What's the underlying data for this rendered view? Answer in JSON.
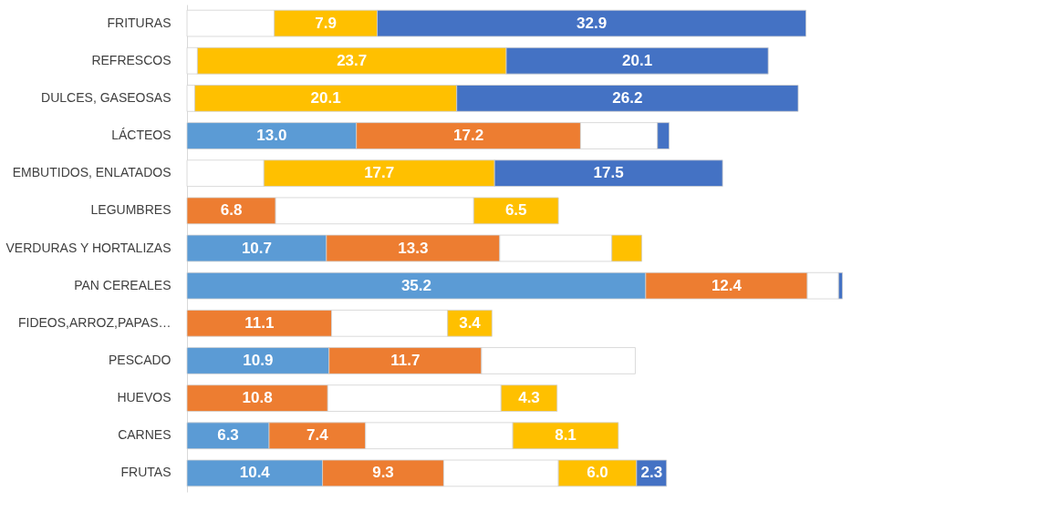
{
  "chart_data": {
    "type": "bar",
    "orientation": "horizontal",
    "stacked": true,
    "tick_labels": "y",
    "grid": false,
    "xlim": [
      0,
      63
    ],
    "categories": [
      "FRITURAS",
      "REFRESCOS",
      "DULCES, GASEOSAS",
      "LÁCTEOS",
      "EMBUTIDOS, ENLATADOS",
      "LEGUMBRES",
      "VERDURAS Y HORTALIZAS",
      "PAN CEREALES",
      "FIDEOS,ARROZ,PAPAS…",
      "PESCADO",
      "HUEVOS",
      "CARNES",
      "FRUTAS"
    ],
    "series": [
      {
        "color": "#5b9bd5",
        "values": [
          0,
          0,
          0,
          13.0,
          0,
          0,
          10.7,
          35.2,
          0,
          10.9,
          0,
          6.3,
          10.4
        ],
        "value_labels": [
          null,
          null,
          null,
          "13.0",
          null,
          null,
          "10.7",
          "35.2",
          null,
          "10.9",
          null,
          "6.3",
          "10.4"
        ]
      },
      {
        "color": "#ed7d31",
        "values": [
          0,
          0,
          0,
          17.2,
          0,
          6.8,
          13.3,
          12.4,
          11.1,
          11.7,
          10.8,
          7.4,
          9.3
        ],
        "value_labels": [
          null,
          null,
          null,
          "17.2",
          null,
          "6.8",
          "13.3",
          "12.4",
          "11.1",
          "11.7",
          "10.8",
          "7.4",
          "9.3"
        ]
      },
      {
        "color": "#ffffff",
        "values": [
          6.7,
          0.8,
          0.6,
          5.9,
          5.9,
          15.2,
          8.6,
          2.4,
          8.9,
          11.8,
          13.3,
          11.3,
          8.8
        ],
        "value_labels": [
          null,
          null,
          null,
          null,
          null,
          null,
          null,
          null,
          null,
          null,
          null,
          null,
          null
        ]
      },
      {
        "color": "#ffc000",
        "values": [
          7.9,
          23.7,
          20.1,
          0,
          17.7,
          6.5,
          2.3,
          0,
          3.4,
          0,
          4.3,
          8.1,
          6.0
        ],
        "value_labels": [
          "7.9",
          "23.7",
          "20.1",
          null,
          "17.7",
          "6.5",
          null,
          null,
          "3.4",
          null,
          "4.3",
          "8.1",
          "6.0"
        ]
      },
      {
        "color": "#4472c4",
        "values": [
          32.9,
          20.1,
          26.2,
          0.9,
          17.5,
          0,
          0,
          0.3,
          0,
          0,
          0,
          0,
          2.3
        ],
        "value_labels": [
          "32.9",
          "20.1",
          "26.2",
          null,
          "17.5",
          null,
          null,
          null,
          null,
          null,
          null,
          null,
          "2.3"
        ]
      }
    ]
  }
}
